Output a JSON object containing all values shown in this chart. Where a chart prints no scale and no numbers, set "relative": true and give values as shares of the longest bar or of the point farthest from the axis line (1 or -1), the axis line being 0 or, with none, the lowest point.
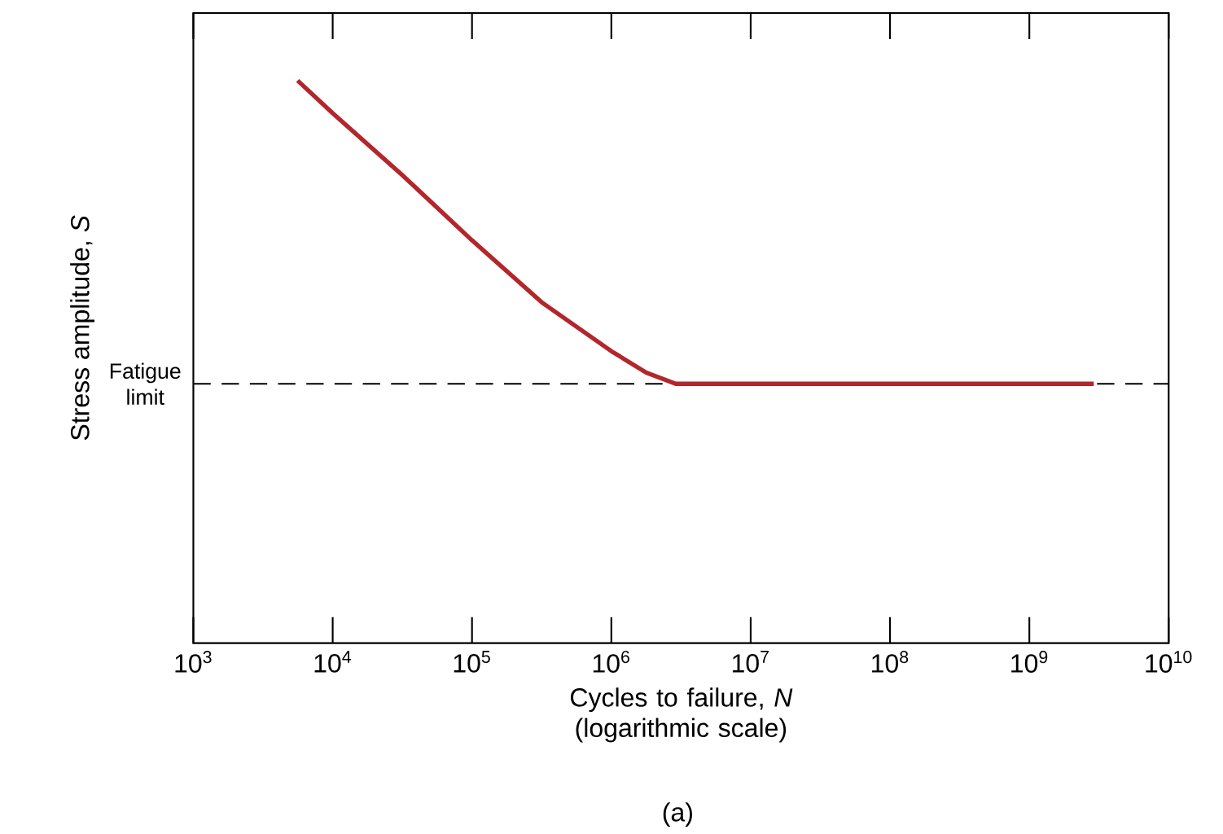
{
  "chart_data": {
    "type": "line",
    "relative": true,
    "log": "x",
    "xlabel": "Cycles to failure, *N* (logarithmic scale)",
    "ylabel": "Stress amplitude, *S*",
    "xlim": [
      1000,
      10000000000
    ],
    "xticks": [
      {
        "value": 1000,
        "label": "10$^{3}$"
      },
      {
        "value": 10000,
        "label": "10$^{4}$"
      },
      {
        "value": 100000,
        "label": "10$^{5}$"
      },
      {
        "value": 1000000,
        "label": "10$^{6}$"
      },
      {
        "value": 10000000,
        "label": "10$^{7}$"
      },
      {
        "value": 100000000,
        "label": "10$^{8}$"
      },
      {
        "value": 1000000000,
        "label": "10$^{9}$"
      },
      {
        "value": 10000000000,
        "label": "10$^{10}$"
      }
    ],
    "x": [
      5600,
      10000,
      31600,
      100000,
      316000,
      1000000,
      1780000,
      2900000,
      2900000000
    ],
    "series": [
      {
        "color": "#b3262b",
        "values": [
          1,
          0.942,
          0.832,
          0.716,
          0.606,
          0.519,
          0.481,
          0.461,
          0.461
        ]
      }
    ],
    "ref_lines": [
      {
        "axis": "y",
        "value": 0.461,
        "label": "Fatigue limit",
        "color": "#000000",
        "line_style": "dashed"
      }
    ],
    "annotations": [
      "(a)"
    ],
    "grid": false,
    "marker": "none",
    "line_style": "solid"
  }
}
